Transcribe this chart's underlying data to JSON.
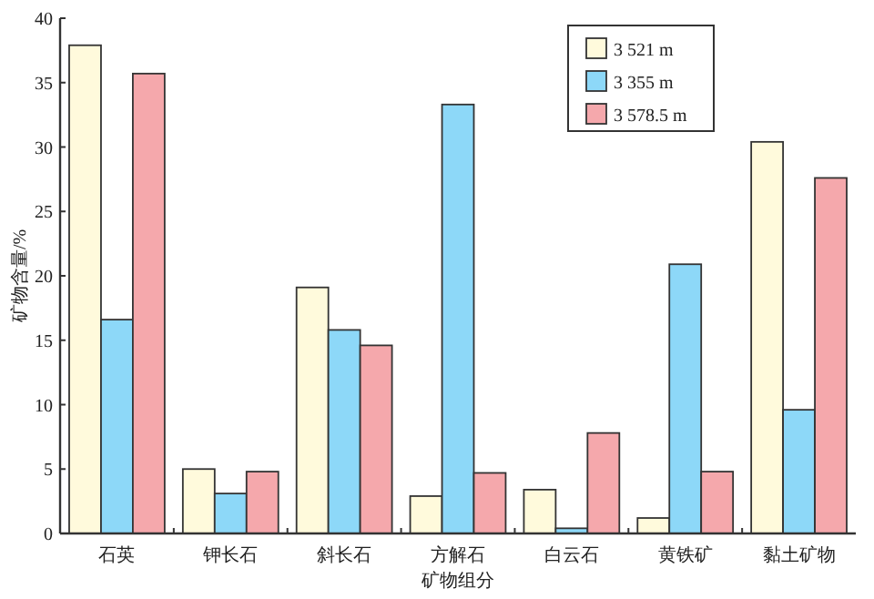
{
  "chart_data": {
    "type": "bar",
    "xlabel": "矿物组分",
    "ylabel": "矿物含量/%",
    "categories": [
      "石英",
      "钾长石",
      "斜长石",
      "方解石",
      "白云石",
      "黄铁矿",
      "黏土矿物"
    ],
    "series": [
      {
        "name": "3 521 m",
        "color": "#fffadc",
        "values": [
          37.9,
          5.0,
          19.1,
          2.9,
          3.4,
          1.2,
          30.4
        ]
      },
      {
        "name": "3 355 m",
        "color": "#8dd8f8",
        "values": [
          16.6,
          3.1,
          15.8,
          33.3,
          0.4,
          20.9,
          9.6
        ]
      },
      {
        "name": "3 578.5 m",
        "color": "#f5a8ac",
        "values": [
          35.7,
          4.8,
          14.6,
          4.7,
          7.8,
          4.8,
          27.6
        ]
      }
    ],
    "ylim": [
      0,
      40
    ],
    "yticks": [
      0,
      5,
      10,
      15,
      20,
      25,
      30,
      35,
      40
    ],
    "grid": false,
    "legend": "top right"
  }
}
